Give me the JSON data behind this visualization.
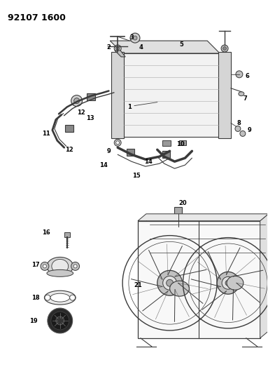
{
  "title": "92107 1600",
  "bg_color": "#ffffff",
  "line_color": "#3a3a3a",
  "text_color": "#000000",
  "title_fontsize": 9,
  "label_fontsize": 6,
  "fig_width": 3.83,
  "fig_height": 5.33,
  "dpi": 100
}
